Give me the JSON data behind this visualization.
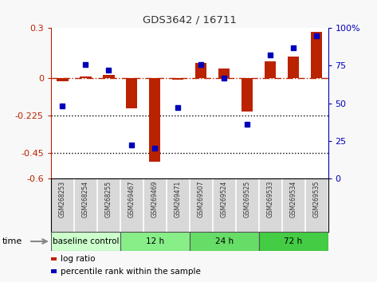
{
  "title": "GDS3642 / 16711",
  "samples": [
    "GSM268253",
    "GSM268254",
    "GSM268255",
    "GSM269467",
    "GSM269469",
    "GSM269471",
    "GSM269507",
    "GSM269524",
    "GSM269525",
    "GSM269533",
    "GSM269534",
    "GSM269535"
  ],
  "log_ratio": [
    -0.02,
    0.01,
    0.02,
    -0.18,
    -0.5,
    -0.01,
    0.09,
    0.06,
    -0.2,
    0.1,
    0.13,
    0.28
  ],
  "percentile_rank": [
    48,
    76,
    72,
    22,
    20,
    47,
    76,
    67,
    36,
    82,
    87,
    95
  ],
  "ylim_left": [
    -0.6,
    0.3
  ],
  "ylim_right": [
    0,
    100
  ],
  "yticks_left": [
    0.3,
    0.0,
    -0.225,
    -0.45,
    -0.6
  ],
  "yticks_right": [
    100,
    75,
    50,
    25,
    0
  ],
  "ytick_labels_left": [
    "0.3",
    "0",
    "-0.225",
    "-0.45",
    "-0.6"
  ],
  "ytick_labels_right": [
    "100%",
    "75",
    "50",
    "25",
    "0"
  ],
  "hlines": [
    -0.225,
    -0.45
  ],
  "bar_color": "#bb2200",
  "dot_color": "#0000bb",
  "dash_color": "#bb2200",
  "groups": [
    {
      "label": "baseline control",
      "start": 0,
      "end": 3,
      "color": "#ccffcc"
    },
    {
      "label": "12 h",
      "start": 3,
      "end": 6,
      "color": "#88ee88"
    },
    {
      "label": "24 h",
      "start": 6,
      "end": 9,
      "color": "#66dd66"
    },
    {
      "label": "72 h",
      "start": 9,
      "end": 12,
      "color": "#44cc44"
    }
  ],
  "legend_bar_label": "log ratio",
  "legend_dot_label": "percentile rank within the sample",
  "time_label": "time",
  "sample_bg": "#d8d8d8",
  "plot_bg": "#ffffff"
}
